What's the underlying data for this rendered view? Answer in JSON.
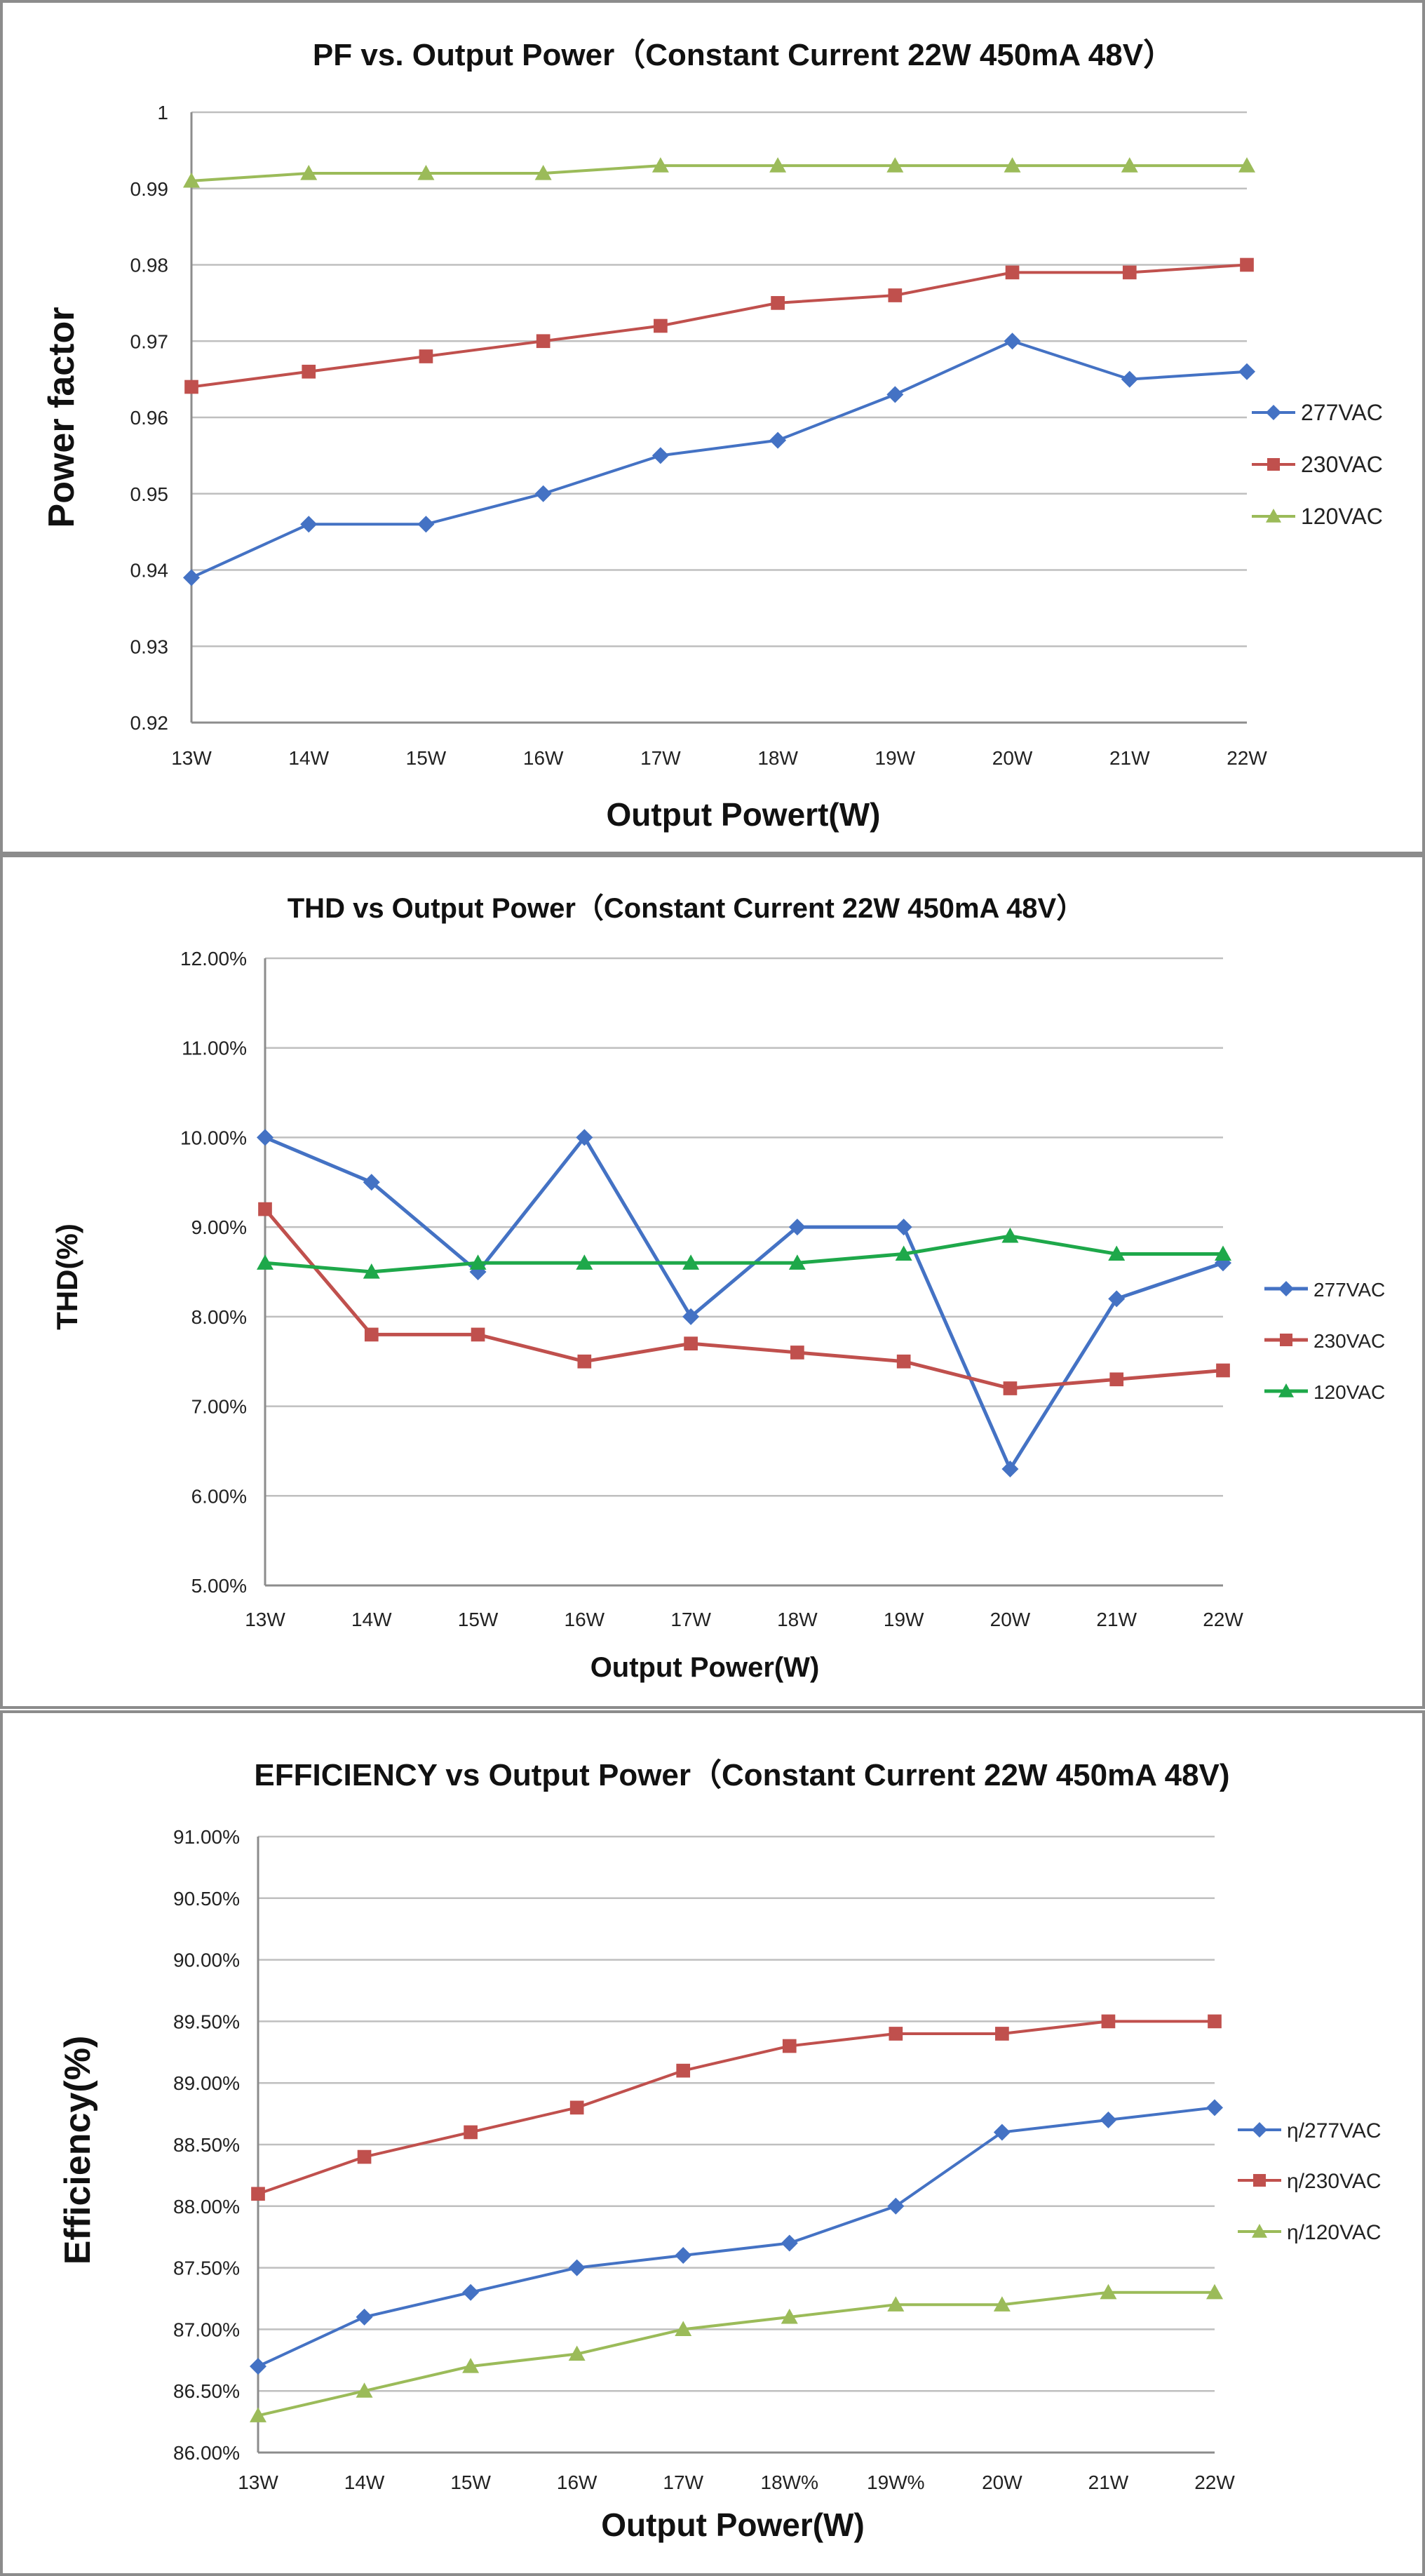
{
  "chart_data": [
    {
      "type": "line",
      "title": "PF vs. Output Power（Constant Current 22W 450mA 48V）",
      "xlabel": "Output Powert(W)",
      "ylabel": "Power factor",
      "categories": [
        "13W",
        "14W",
        "15W",
        "16W",
        "17W",
        "18W",
        "19W",
        "20W",
        "21W",
        "22W"
      ],
      "ylim": [
        0.92,
        1.0
      ],
      "yticks": [
        {
          "v": 0.92,
          "label": "0.92"
        },
        {
          "v": 0.93,
          "label": "0.93"
        },
        {
          "v": 0.94,
          "label": "0.94"
        },
        {
          "v": 0.95,
          "label": "0.95"
        },
        {
          "v": 0.96,
          "label": "0.96"
        },
        {
          "v": 0.97,
          "label": "0.97"
        },
        {
          "v": 0.98,
          "label": "0.98"
        },
        {
          "v": 0.99,
          "label": "0.99"
        },
        {
          "v": 1.0,
          "label": "1"
        }
      ],
      "grid": true,
      "legend_position": "right",
      "series": [
        {
          "name": "277VAC",
          "color": "#4472C4",
          "marker": "diamond",
          "values": [
            0.939,
            0.946,
            0.946,
            0.95,
            0.955,
            0.957,
            0.963,
            0.97,
            0.965,
            0.966
          ]
        },
        {
          "name": "230VAC",
          "color": "#C0504D",
          "marker": "square",
          "values": [
            0.964,
            0.966,
            0.968,
            0.97,
            0.972,
            0.975,
            0.976,
            0.979,
            0.979,
            0.98
          ]
        },
        {
          "name": "120VAC",
          "color": "#9BBB59",
          "marker": "triangle",
          "values": [
            0.991,
            0.992,
            0.992,
            0.992,
            0.993,
            0.993,
            0.993,
            0.993,
            0.993,
            0.993
          ]
        }
      ]
    },
    {
      "type": "line",
      "title": "THD vs Output Power（Constant Current 22W 450mA 48V）",
      "xlabel": "Output Power(W)",
      "ylabel": "THD(%)",
      "categories": [
        "13W",
        "14W",
        "15W",
        "16W",
        "17W",
        "18W",
        "19W",
        "20W",
        "21W",
        "22W"
      ],
      "ylim": [
        5.0,
        12.0
      ],
      "yticks": [
        {
          "v": 5.0,
          "label": "5.00%"
        },
        {
          "v": 6.0,
          "label": "6.00%"
        },
        {
          "v": 7.0,
          "label": "7.00%"
        },
        {
          "v": 8.0,
          "label": "8.00%"
        },
        {
          "v": 9.0,
          "label": "9.00%"
        },
        {
          "v": 10.0,
          "label": "10.00%"
        },
        {
          "v": 11.0,
          "label": "11.00%"
        },
        {
          "v": 12.0,
          "label": "12.00%"
        }
      ],
      "grid": true,
      "legend_position": "right",
      "series": [
        {
          "name": "277VAC",
          "color": "#4472C4",
          "marker": "diamond",
          "values": [
            10.0,
            9.5,
            8.5,
            10.0,
            8.0,
            9.0,
            9.0,
            6.3,
            8.2,
            8.6
          ]
        },
        {
          "name": "230VAC",
          "color": "#C0504D",
          "marker": "square",
          "values": [
            9.2,
            7.8,
            7.8,
            7.5,
            7.7,
            7.6,
            7.5,
            7.2,
            7.3,
            7.4
          ]
        },
        {
          "name": "120VAC",
          "color": "#1EA84A",
          "marker": "triangle",
          "values": [
            8.6,
            8.5,
            8.6,
            8.6,
            8.6,
            8.6,
            8.7,
            8.9,
            8.7,
            8.7
          ]
        }
      ]
    },
    {
      "type": "line",
      "title": "EFFICIENCY vs Output Power（Constant Current 22W 450mA 48V)",
      "xlabel": "Output Power(W)",
      "ylabel": "Efficiency(%)",
      "categories": [
        "13W",
        "14W",
        "15W",
        "16W",
        "17W",
        "18W%",
        "19W%",
        "20W",
        "21W",
        "22W"
      ],
      "ylim": [
        86.0,
        91.0
      ],
      "yticks": [
        {
          "v": 86.0,
          "label": "86.00%"
        },
        {
          "v": 86.5,
          "label": "86.50%"
        },
        {
          "v": 87.0,
          "label": "87.00%"
        },
        {
          "v": 87.5,
          "label": "87.50%"
        },
        {
          "v": 88.0,
          "label": "88.00%"
        },
        {
          "v": 88.5,
          "label": "88.50%"
        },
        {
          "v": 89.0,
          "label": "89.00%"
        },
        {
          "v": 89.5,
          "label": "89.50%"
        },
        {
          "v": 90.0,
          "label": "90.00%"
        },
        {
          "v": 90.5,
          "label": "90.50%"
        },
        {
          "v": 91.0,
          "label": "91.00%"
        }
      ],
      "grid": true,
      "legend_position": "right",
      "series": [
        {
          "name": "η/277VAC",
          "color": "#4472C4",
          "marker": "diamond",
          "values": [
            86.7,
            87.1,
            87.3,
            87.5,
            87.6,
            87.7,
            88.0,
            88.6,
            88.7,
            88.8
          ]
        },
        {
          "name": "η/230VAC",
          "color": "#C0504D",
          "marker": "square",
          "values": [
            88.1,
            88.4,
            88.6,
            88.8,
            89.1,
            89.3,
            89.4,
            89.4,
            89.5,
            89.5
          ]
        },
        {
          "name": "η/120VAC",
          "color": "#9BBB59",
          "marker": "triangle",
          "values": [
            86.3,
            86.5,
            86.7,
            86.8,
            87.0,
            87.1,
            87.2,
            87.2,
            87.3,
            87.3
          ]
        }
      ]
    }
  ]
}
